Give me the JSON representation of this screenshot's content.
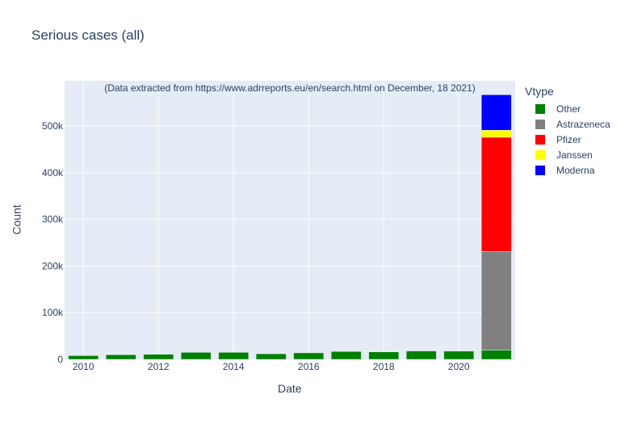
{
  "chart_data": {
    "type": "bar",
    "title": "Serious cases (all)",
    "annotation": "(Data extracted from https://www.adrreports.eu/en/search.html on December, 18 2021)",
    "xlabel": "Date",
    "ylabel": "Count",
    "legend_title": "Vtype",
    "categories": [
      "2010",
      "2011",
      "2012",
      "2013",
      "2014",
      "2015",
      "2016",
      "2017",
      "2018",
      "2019",
      "2020",
      "2021"
    ],
    "x_ticks": [
      "2010",
      "2012",
      "2014",
      "2016",
      "2018",
      "2020"
    ],
    "y_ticks": [
      {
        "value": 0,
        "label": "0"
      },
      {
        "value": 100000,
        "label": "100k"
      },
      {
        "value": 200000,
        "label": "200k"
      },
      {
        "value": 300000,
        "label": "300k"
      },
      {
        "value": 400000,
        "label": "400k"
      },
      {
        "value": 500000,
        "label": "500k"
      }
    ],
    "ylim": [
      0,
      597000
    ],
    "grid": true,
    "legend_position": "right",
    "series": [
      {
        "name": "Other",
        "color": "#008000",
        "values": [
          8000,
          10000,
          11000,
          15000,
          15000,
          12000,
          14000,
          17000,
          16000,
          18000,
          18000,
          20000
        ]
      },
      {
        "name": "Astrazeneca",
        "color": "#808080",
        "values": [
          0,
          0,
          0,
          0,
          0,
          0,
          0,
          0,
          0,
          0,
          0,
          211000
        ]
      },
      {
        "name": "Pfizer",
        "color": "#ff0000",
        "values": [
          0,
          0,
          0,
          0,
          0,
          0,
          0,
          0,
          0,
          0,
          500,
          245000
        ]
      },
      {
        "name": "Janssen",
        "color": "#ffff00",
        "values": [
          0,
          0,
          0,
          0,
          0,
          0,
          0,
          0,
          0,
          0,
          0,
          15000
        ]
      },
      {
        "name": "Moderna",
        "color": "#0000ff",
        "values": [
          0,
          0,
          0,
          0,
          0,
          0,
          0,
          0,
          0,
          0,
          0,
          76000
        ]
      }
    ]
  }
}
